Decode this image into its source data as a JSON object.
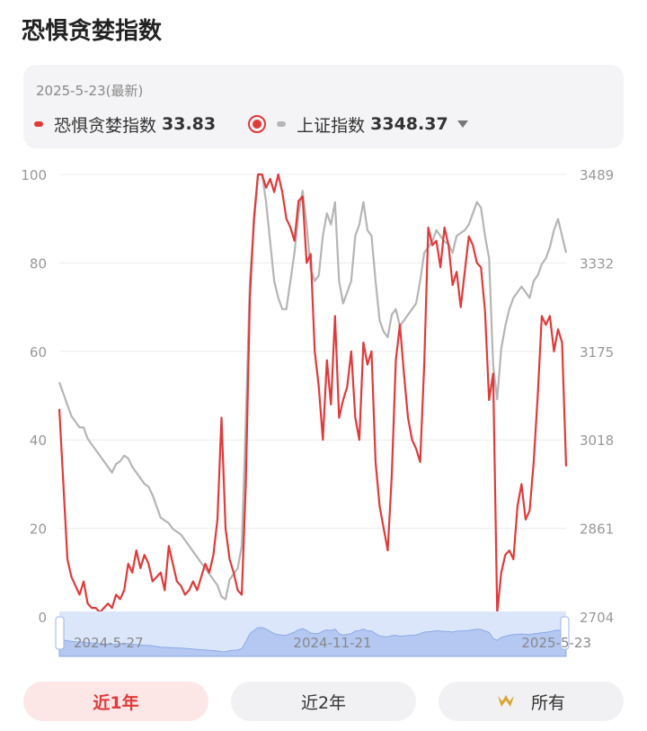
{
  "title": "恐惧贪婪指数",
  "info": {
    "date": "2025-5-23(最新)",
    "fg_label": "恐惧贪婪指数",
    "fg_value": "33.83",
    "sh_label": "上证指数",
    "sh_value": "3348.37"
  },
  "colors": {
    "fear_greed": "#e03a3a",
    "sse": "#b5b5b5",
    "navigator": "#dbe6fb"
  },
  "chart_data": {
    "type": "line",
    "title": "",
    "y_left": {
      "ticks": [
        "100",
        "80",
        "60",
        "40",
        "20",
        "0"
      ],
      "range": [
        0,
        100
      ]
    },
    "y_right": {
      "ticks": [
        "3489",
        "3332",
        "3175",
        "3018",
        "2861",
        "2704"
      ],
      "range": [
        2704,
        3489
      ]
    },
    "x_labels": [
      "2024-5-27",
      "2024-11-21",
      "2025-5-23"
    ],
    "grid": true,
    "series": [
      {
        "name": "恐惧贪婪指数",
        "axis": "left",
        "values": [
          47,
          30,
          13,
          9,
          7,
          5,
          8,
          3,
          2,
          2,
          1,
          2,
          3,
          2,
          5,
          4,
          6,
          12,
          10,
          15,
          11,
          14,
          12,
          8,
          9,
          10,
          6,
          16,
          12,
          8,
          7,
          5,
          6,
          8,
          6,
          9,
          12,
          10,
          14,
          22,
          45,
          20,
          13,
          10,
          6,
          5,
          30,
          72,
          90,
          100,
          100,
          97,
          99,
          96,
          100,
          96,
          90,
          88,
          85,
          94,
          95,
          80,
          82,
          60,
          52,
          40,
          58,
          48,
          68,
          45,
          49,
          52,
          60,
          45,
          40,
          62,
          57,
          60,
          35,
          25,
          20,
          15,
          32,
          58,
          66,
          55,
          45,
          40,
          38,
          35,
          57,
          88,
          84,
          85,
          79,
          88,
          84,
          75,
          78,
          70,
          78,
          86,
          84,
          80,
          79,
          69,
          49,
          55,
          1,
          10,
          14,
          15,
          13,
          25,
          30,
          22,
          24,
          35,
          50,
          68,
          66,
          68,
          60,
          65,
          62,
          34
        ]
      },
      {
        "name": "上证指数",
        "axis": "right",
        "values": [
          3120,
          3100,
          3080,
          3060,
          3050,
          3040,
          3040,
          3020,
          3010,
          3000,
          2990,
          2980,
          2970,
          2960,
          2975,
          2980,
          2990,
          2985,
          2970,
          2960,
          2950,
          2940,
          2935,
          2920,
          2900,
          2880,
          2875,
          2870,
          2860,
          2855,
          2850,
          2840,
          2830,
          2820,
          2810,
          2800,
          2790,
          2780,
          2770,
          2760,
          2740,
          2735,
          2770,
          2780,
          2790,
          2830,
          3050,
          3300,
          3400,
          3489,
          3489,
          3440,
          3370,
          3300,
          3270,
          3250,
          3250,
          3300,
          3350,
          3420,
          3460,
          3400,
          3320,
          3300,
          3310,
          3380,
          3420,
          3400,
          3440,
          3300,
          3260,
          3280,
          3300,
          3380,
          3400,
          3440,
          3390,
          3380,
          3300,
          3230,
          3210,
          3200,
          3240,
          3250,
          3220,
          3230,
          3240,
          3250,
          3260,
          3300,
          3350,
          3360,
          3370,
          3390,
          3380,
          3370,
          3365,
          3350,
          3380,
          3385,
          3390,
          3400,
          3420,
          3440,
          3430,
          3380,
          3340,
          3150,
          3090,
          3180,
          3220,
          3250,
          3270,
          3280,
          3290,
          3280,
          3270,
          3300,
          3310,
          3330,
          3340,
          3360,
          3390,
          3410,
          3380,
          3350
        ]
      }
    ]
  },
  "buttons": {
    "b1": "近1年",
    "b2": "近2年",
    "b3": "所有"
  }
}
